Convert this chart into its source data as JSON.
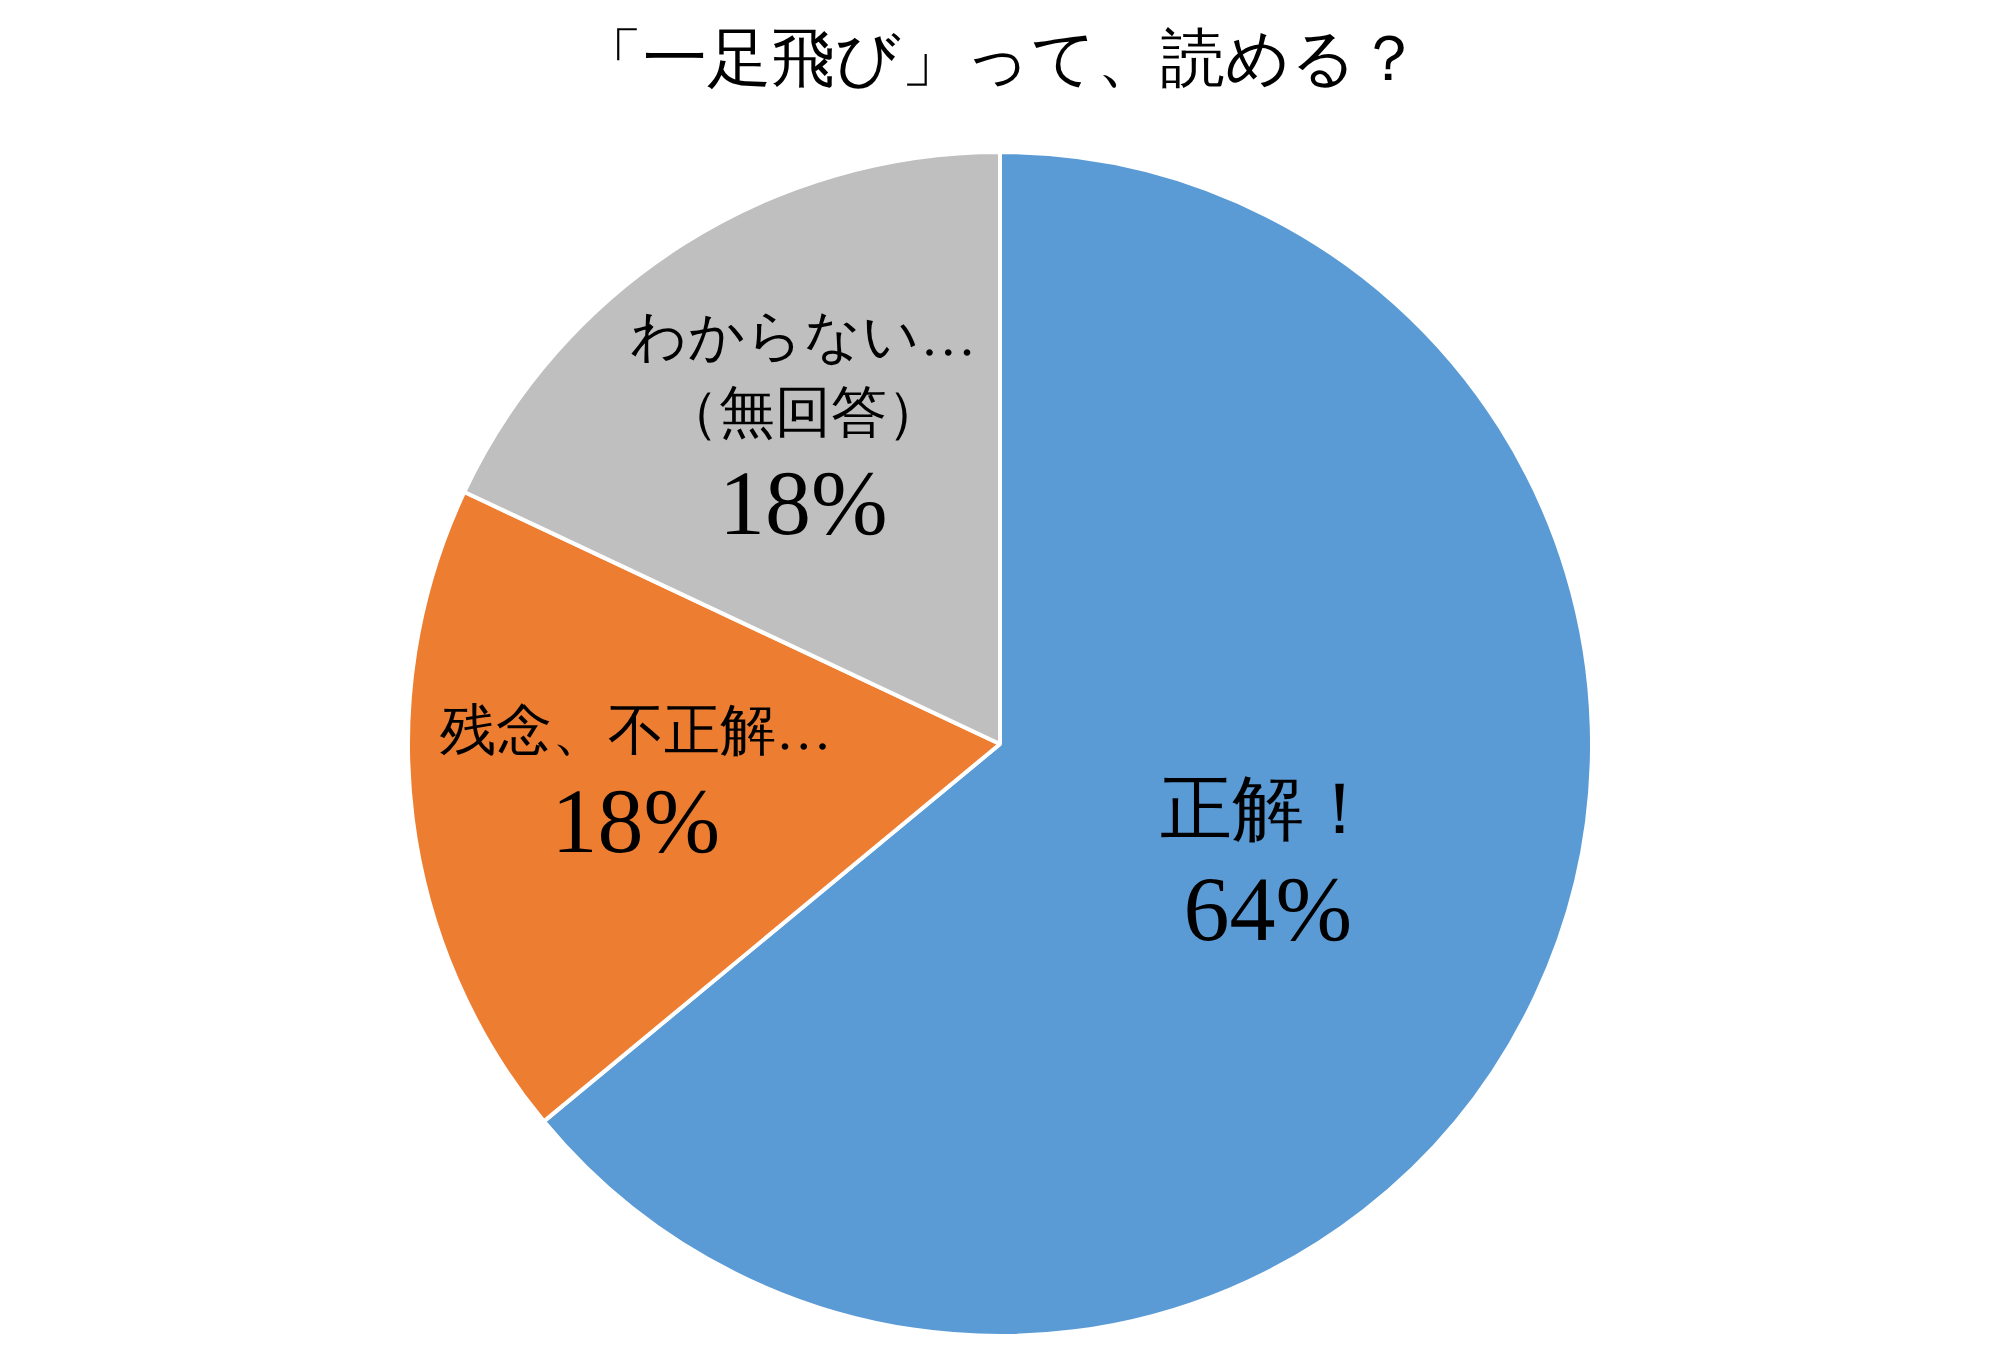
{
  "chart_data": {
    "type": "pie",
    "title": "「一足飛び」って、読める？",
    "categories": [
      "正解！",
      "残念、不正解…",
      "わからない…\n（無回答）"
    ],
    "values": [
      64,
      18,
      18
    ],
    "colors": [
      "#5b9bd5",
      "#ed7d31",
      "#bfbfbf"
    ],
    "value_labels": [
      "64%",
      "18%",
      "18%"
    ],
    "legend": false
  }
}
